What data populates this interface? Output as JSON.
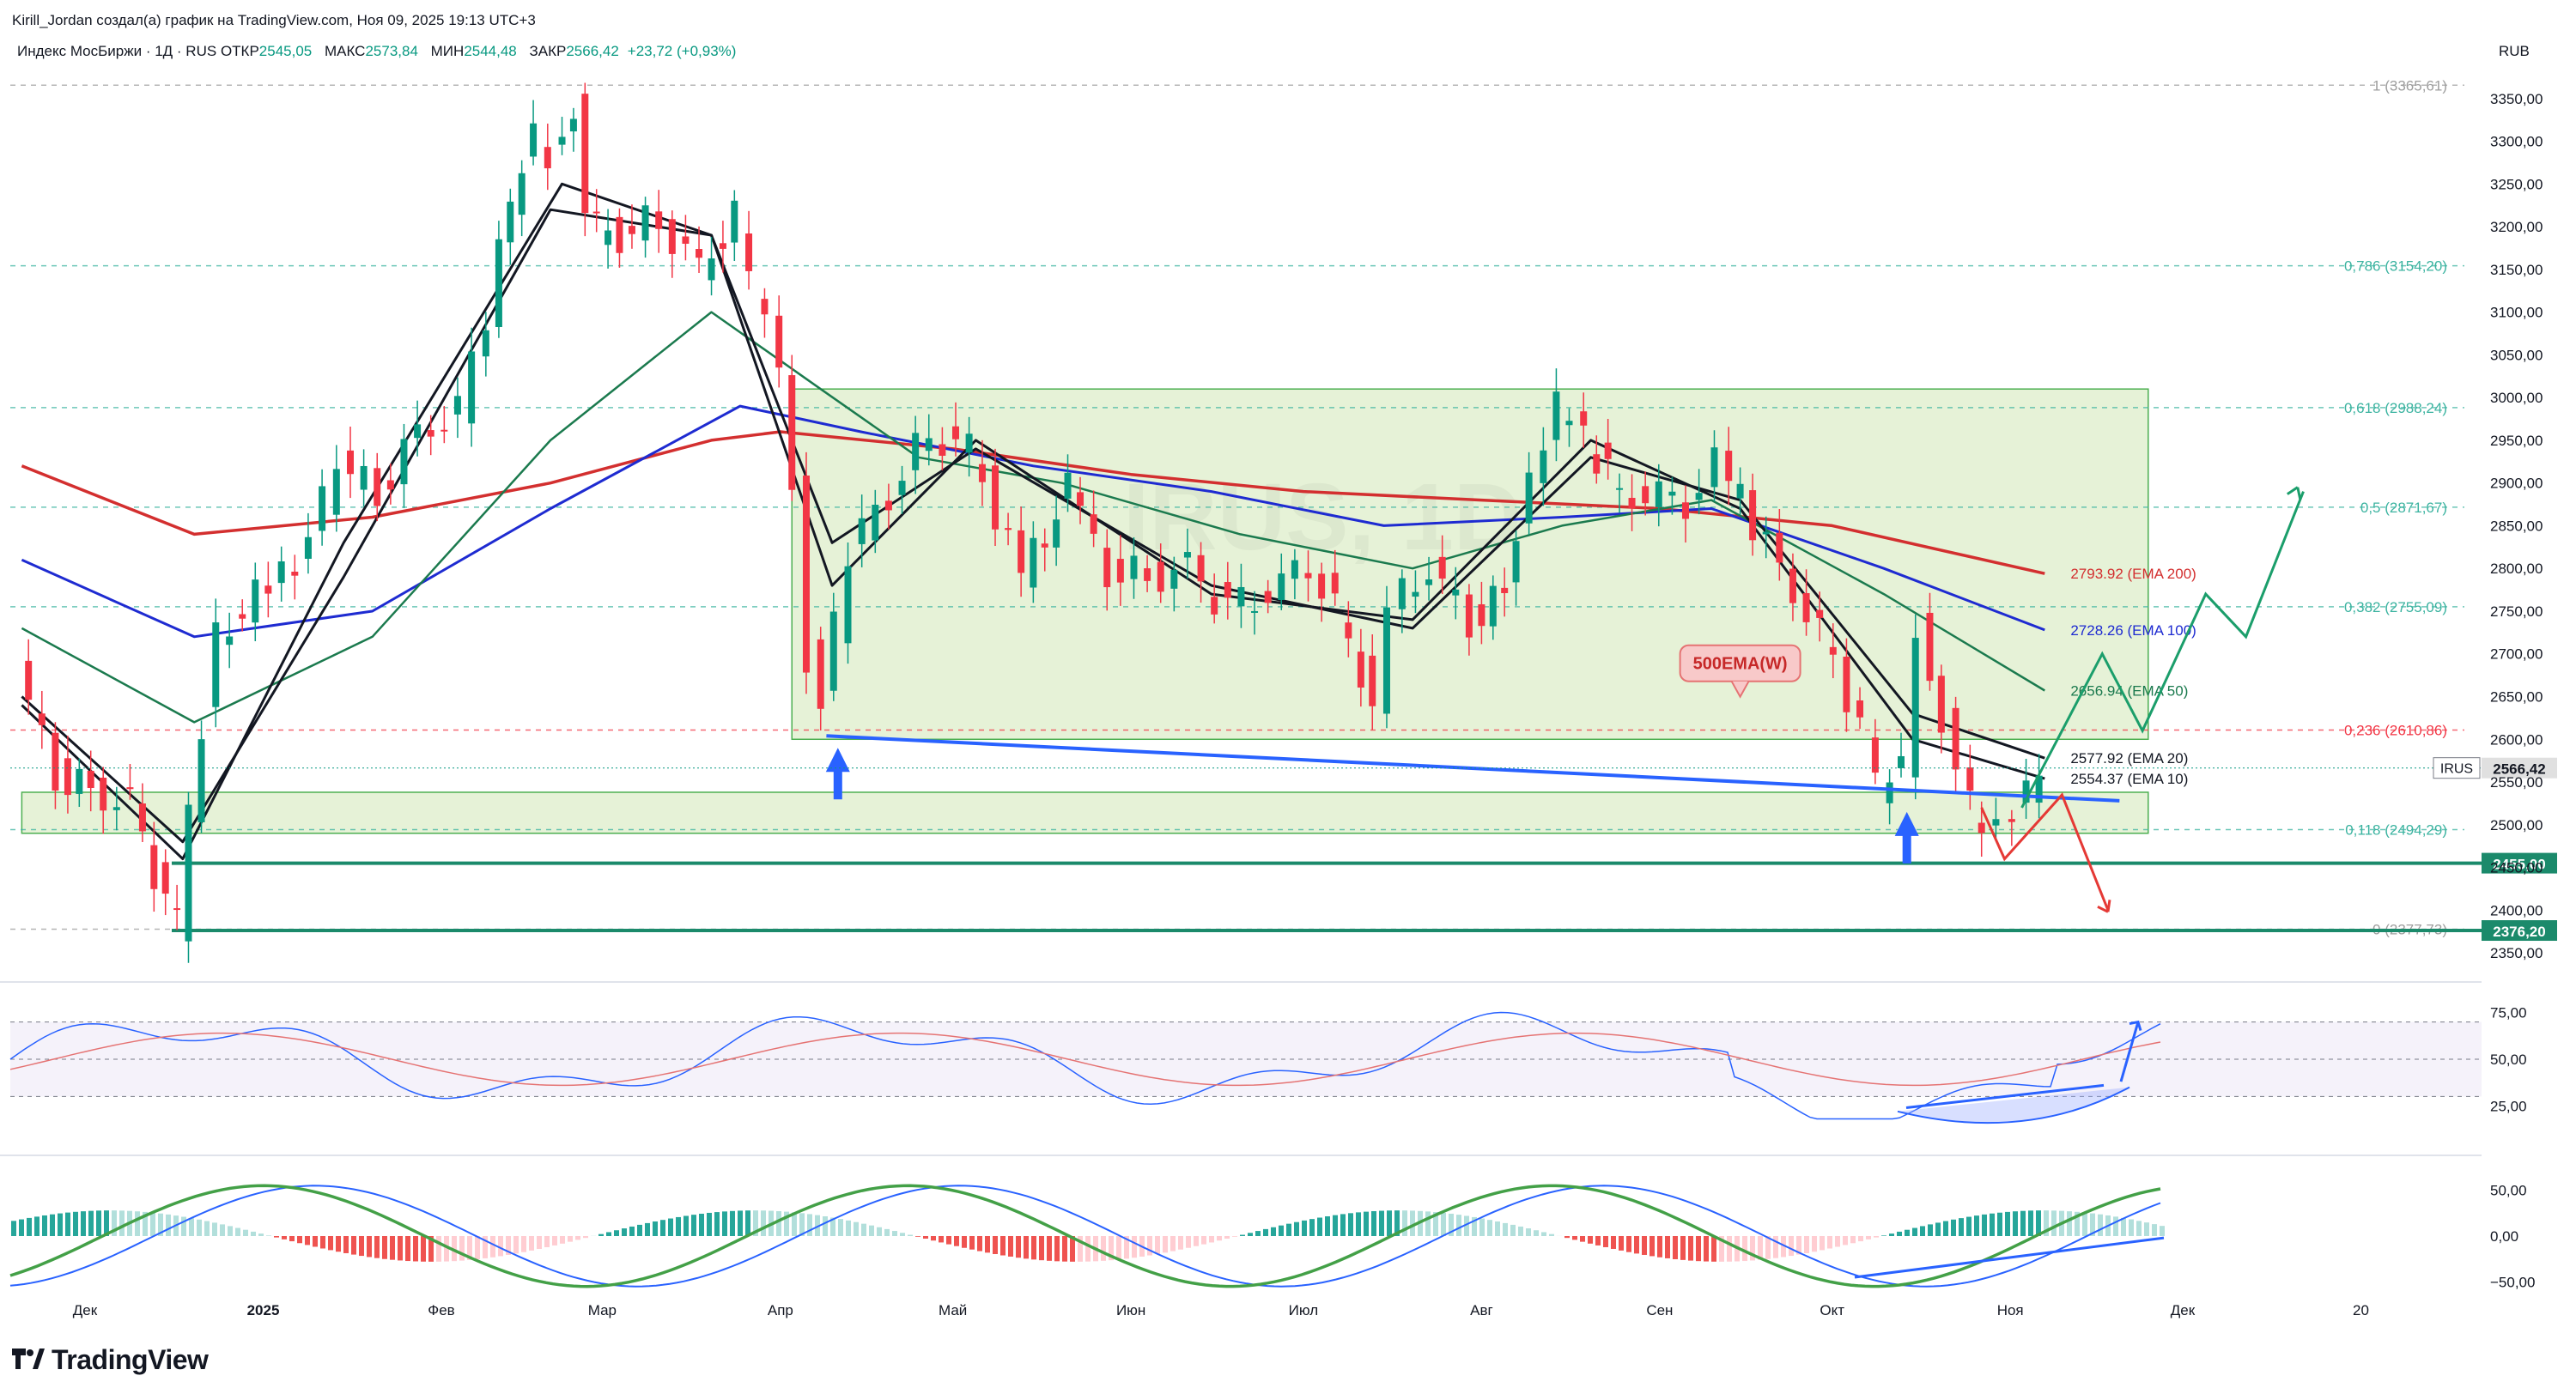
{
  "header": {
    "author_line": "Kirill_Jordan создал(а) график на TradingView.com, Ноя 09, 2025 19:13 UTC+3",
    "symbol_line": "Индекс МосБиржи · 1Д · RUS",
    "ohlc": [
      {
        "label": "ОТКР",
        "value": "2545,05"
      },
      {
        "label": "МАКС",
        "value": "2573,84"
      },
      {
        "label": "МИН",
        "value": "2544,48"
      },
      {
        "label": "ЗАКР",
        "value": "2566,42"
      },
      {
        "label": "",
        "value": "+23,72 (+0,93%)"
      }
    ],
    "currency": "RUB"
  },
  "watermark": "IRUS, 1D",
  "logo": "TradingView",
  "colors": {
    "up": "#089981",
    "down": "#f23645",
    "ema200": "#d32f2f",
    "ema100": "#1e2bd1",
    "ema50": "#1b7a4e",
    "fib": "#3bb3a0",
    "zone": "#c8e6c9",
    "blue_line": "#2962ff"
  },
  "chart_data": {
    "type": "candlestick",
    "symbol": "IRUS",
    "timeframe": "1D",
    "y_axis": {
      "unit": "RUB",
      "ticks": [
        "3350,00",
        "3300,00",
        "3250,00",
        "3200,00",
        "3150,00",
        "3100,00",
        "3050,00",
        "3000,00",
        "2950,00",
        "2900,00",
        "2850,00",
        "2800,00",
        "2750,00",
        "2700,00",
        "2650,00",
        "2600,00",
        "2550,00",
        "2500,00",
        "2450,00",
        "2400,00",
        "2350,00"
      ],
      "tick_values": [
        3350,
        3300,
        3250,
        3200,
        3150,
        3100,
        3050,
        3000,
        2950,
        2900,
        2850,
        2800,
        2750,
        2700,
        2650,
        2600,
        2550,
        2500,
        2450,
        2400,
        2350
      ],
      "range": [
        2330,
        3395
      ]
    },
    "x_axis": {
      "ticks": [
        "Дек",
        "2025",
        "Фев",
        "Мар",
        "Апр",
        "Май",
        "Июн",
        "Июл",
        "Авг",
        "Сен",
        "Окт",
        "Ноя",
        "Дек",
        "20"
      ],
      "bold": [
        "2025"
      ]
    },
    "price_path": [
      [
        "2024-11-20",
        2680
      ],
      [
        "2024-11-27",
        2560
      ],
      [
        "2024-12-03",
        2540
      ],
      [
        "2024-12-10",
        2520
      ],
      [
        "2024-12-16",
        2410
      ],
      [
        "2024-12-18",
        2380
      ],
      [
        "2024-12-20",
        2520
      ],
      [
        "2024-12-25",
        2720
      ],
      [
        "2025-01-03",
        2780
      ],
      [
        "2025-01-10",
        2830
      ],
      [
        "2025-01-15",
        2920
      ],
      [
        "2025-01-22",
        2890
      ],
      [
        "2025-01-29",
        2960
      ],
      [
        "2025-02-05",
        2980
      ],
      [
        "2025-02-10",
        3100
      ],
      [
        "2025-02-14",
        3230
      ],
      [
        "2025-02-18",
        3300
      ],
      [
        "2025-02-21",
        3290
      ],
      [
        "2025-02-25",
        3340
      ],
      [
        "2025-02-27",
        3200
      ],
      [
        "2025-03-05",
        3190
      ],
      [
        "2025-03-12",
        3210
      ],
      [
        "2025-03-19",
        3150
      ],
      [
        "2025-03-25",
        3210
      ],
      [
        "2025-03-28",
        3130
      ],
      [
        "2025-04-02",
        3030
      ],
      [
        "2025-04-04",
        2900
      ],
      [
        "2025-04-07",
        2700
      ],
      [
        "2025-04-09",
        2640
      ],
      [
        "2025-04-14",
        2820
      ],
      [
        "2025-04-21",
        2890
      ],
      [
        "2025-04-28",
        2960
      ],
      [
        "2025-05-05",
        2940
      ],
      [
        "2025-05-14",
        2790
      ],
      [
        "2025-05-22",
        2890
      ],
      [
        "2025-05-29",
        2800
      ],
      [
        "2025-06-05",
        2790
      ],
      [
        "2025-06-12",
        2800
      ],
      [
        "2025-06-19",
        2750
      ],
      [
        "2025-06-26",
        2770
      ],
      [
        "2025-07-03",
        2810
      ],
      [
        "2025-07-10",
        2720
      ],
      [
        "2025-07-14",
        2640
      ],
      [
        "2025-07-17",
        2750
      ],
      [
        "2025-07-24",
        2800
      ],
      [
        "2025-07-31",
        2740
      ],
      [
        "2025-08-06",
        2770
      ],
      [
        "2025-08-08",
        2850
      ],
      [
        "2025-08-13",
        2960
      ],
      [
        "2025-08-15",
        2985
      ],
      [
        "2025-08-20",
        2950
      ],
      [
        "2025-08-26",
        2890
      ],
      [
        "2025-09-02",
        2880
      ],
      [
        "2025-09-09",
        2880
      ],
      [
        "2025-09-12",
        2920
      ],
      [
        "2025-09-16",
        2880
      ],
      [
        "2025-09-23",
        2800
      ],
      [
        "2025-09-30",
        2720
      ],
      [
        "2025-10-07",
        2620
      ],
      [
        "2025-10-10",
        2540
      ],
      [
        "2025-10-14",
        2560
      ],
      [
        "2025-10-17",
        2740
      ],
      [
        "2025-10-21",
        2620
      ],
      [
        "2025-10-24",
        2550
      ],
      [
        "2025-10-28",
        2490
      ],
      [
        "2025-10-31",
        2510
      ],
      [
        "2025-11-05",
        2540
      ],
      [
        "2025-11-07",
        2566.42
      ]
    ],
    "series": [
      {
        "name": "EMA 200",
        "color": "#d32f2f",
        "last": "2793.92",
        "points": [
          [
            "2024-11-20",
            2920
          ],
          [
            "2024-12-20",
            2840
          ],
          [
            "2025-01-20",
            2860
          ],
          [
            "2025-02-20",
            2900
          ],
          [
            "2025-03-20",
            2950
          ],
          [
            "2025-04-01",
            2960
          ],
          [
            "2025-05-01",
            2940
          ],
          [
            "2025-06-01",
            2910
          ],
          [
            "2025-07-01",
            2890
          ],
          [
            "2025-08-01",
            2880
          ],
          [
            "2025-09-01",
            2870
          ],
          [
            "2025-10-01",
            2850
          ],
          [
            "2025-11-07",
            2794
          ]
        ]
      },
      {
        "name": "EMA 100",
        "color": "#1e2bd1",
        "last": "2728.26",
        "points": [
          [
            "2024-11-20",
            2810
          ],
          [
            "2024-12-20",
            2720
          ],
          [
            "2025-01-20",
            2750
          ],
          [
            "2025-02-20",
            2870
          ],
          [
            "2025-03-25",
            2990
          ],
          [
            "2025-04-15",
            2960
          ],
          [
            "2025-05-15",
            2920
          ],
          [
            "2025-06-15",
            2890
          ],
          [
            "2025-07-15",
            2850
          ],
          [
            "2025-08-15",
            2860
          ],
          [
            "2025-09-10",
            2870
          ],
          [
            "2025-10-10",
            2800
          ],
          [
            "2025-11-07",
            2728
          ]
        ]
      },
      {
        "name": "EMA 50",
        "color": "#1b7a4e",
        "last": "2656.94",
        "points": [
          [
            "2024-11-20",
            2730
          ],
          [
            "2024-12-20",
            2620
          ],
          [
            "2025-01-20",
            2720
          ],
          [
            "2025-02-20",
            2950
          ],
          [
            "2025-03-20",
            3100
          ],
          [
            "2025-04-08",
            3010
          ],
          [
            "2025-04-25",
            2930
          ],
          [
            "2025-05-20",
            2900
          ],
          [
            "2025-06-20",
            2840
          ],
          [
            "2025-07-20",
            2800
          ],
          [
            "2025-08-15",
            2850
          ],
          [
            "2025-09-10",
            2880
          ],
          [
            "2025-10-10",
            2770
          ],
          [
            "2025-11-07",
            2657
          ]
        ]
      },
      {
        "name": "EMA 20",
        "color": "#131722",
        "last": "2577.92",
        "points": [
          [
            "2024-11-20",
            2650
          ],
          [
            "2024-12-18",
            2480
          ],
          [
            "2025-01-15",
            2790
          ],
          [
            "2025-02-20",
            3220
          ],
          [
            "2025-03-20",
            3190
          ],
          [
            "2025-04-10",
            2830
          ],
          [
            "2025-05-05",
            2940
          ],
          [
            "2025-06-15",
            2780
          ],
          [
            "2025-07-20",
            2730
          ],
          [
            "2025-08-20",
            2930
          ],
          [
            "2025-09-15",
            2880
          ],
          [
            "2025-10-15",
            2630
          ],
          [
            "2025-11-07",
            2578
          ]
        ]
      },
      {
        "name": "EMA 10",
        "color": "#131722",
        "last": "2554.37",
        "points": [
          [
            "2024-11-20",
            2640
          ],
          [
            "2024-12-18",
            2460
          ],
          [
            "2025-01-15",
            2830
          ],
          [
            "2025-02-22",
            3250
          ],
          [
            "2025-03-20",
            3190
          ],
          [
            "2025-04-10",
            2780
          ],
          [
            "2025-05-05",
            2950
          ],
          [
            "2025-06-15",
            2770
          ],
          [
            "2025-07-20",
            2740
          ],
          [
            "2025-08-20",
            2950
          ],
          [
            "2025-09-15",
            2870
          ],
          [
            "2025-10-15",
            2600
          ],
          [
            "2025-11-07",
            2554
          ]
        ]
      }
    ],
    "fibonacci": [
      {
        "label": "1 (3365,61)",
        "value": 3365.61
      },
      {
        "label": "0,786 (3154,20)",
        "value": 3154.2
      },
      {
        "label": "0,618 (2988,24)",
        "value": 2988.24
      },
      {
        "label": "0,5 (2871,67)",
        "value": 2871.67
      },
      {
        "label": "0,382 (2755,09)",
        "value": 2755.09
      },
      {
        "label": "0,236 (2610,86)",
        "value": 2610.86
      },
      {
        "label": "0,118 (2494,29)",
        "value": 2494.29
      },
      {
        "label": "0 (2377,73)",
        "value": 2377.73
      }
    ],
    "levels": [
      {
        "label": "2455,00",
        "value": 2455.0
      },
      {
        "label": "2376,20",
        "value": 2376.2
      }
    ],
    "current_price": {
      "symbol": "IRUS",
      "label": "2566,42",
      "value": 2566.42
    },
    "annotation": "500EMA(W)",
    "zones": [
      {
        "name": "range",
        "from": "2025-04-03",
        "to": "2025-11-25",
        "low": 2600,
        "high": 3010
      },
      {
        "name": "support",
        "from": "2024-11-20",
        "to": "2025-11-25",
        "low": 2490,
        "high": 2538
      }
    ],
    "rsi": {
      "ticks": [
        "75,00",
        "50,00",
        "25,00"
      ],
      "tick_values": [
        75,
        50,
        25
      ],
      "range": [
        15,
        85
      ]
    },
    "macd": {
      "ticks": [
        "50,00",
        "0,00",
        "−50,00"
      ],
      "tick_values": [
        50,
        0,
        -50
      ],
      "range": [
        -75,
        75
      ]
    }
  }
}
